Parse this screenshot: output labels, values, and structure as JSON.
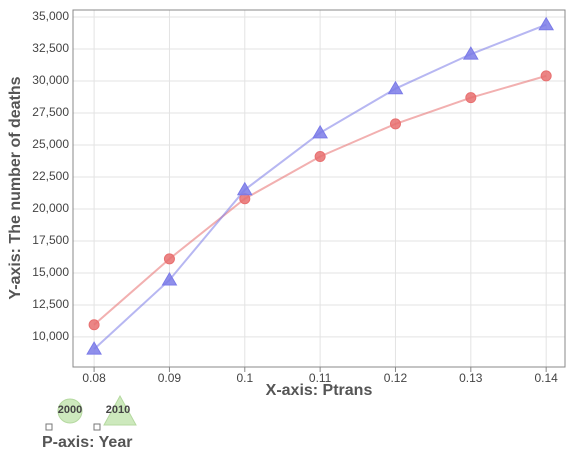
{
  "chart_data": {
    "type": "line",
    "x_label": "X-axis: Ptrans",
    "y_label": "Y-axis: The number of deaths",
    "legend_title": "P-axis: Year",
    "x": [
      0.08,
      0.09,
      0.1,
      0.11,
      0.12,
      0.13,
      0.14
    ],
    "series": [
      {
        "name": "2000",
        "color": "#e87070",
        "marker": "circle",
        "values": [
          10950,
          16100,
          20800,
          24100,
          26650,
          28700,
          30400
        ]
      },
      {
        "name": "2010",
        "color": "#7b7be8",
        "marker": "triangle",
        "values": [
          9050,
          14450,
          21500,
          25950,
          29400,
          32100,
          34400
        ]
      }
    ],
    "xlim": [
      0.0772,
      0.1425
    ],
    "xticks": [
      0.08,
      0.09,
      0.1,
      0.11,
      0.12,
      0.13,
      0.14
    ],
    "ylim": [
      7650,
      35550
    ],
    "yticks": [
      {
        "value": 10000,
        "label": "10,000"
      },
      {
        "value": 12500,
        "label": "12,500"
      },
      {
        "value": 15000,
        "label": "15,000"
      },
      {
        "value": 17500,
        "label": "17,500"
      },
      {
        "value": 20000,
        "label": "20,000"
      },
      {
        "value": 22500,
        "label": "22,500"
      },
      {
        "value": 25000,
        "label": "25,000"
      },
      {
        "value": 27500,
        "label": "27,500"
      },
      {
        "value": 30000,
        "label": "30,000"
      },
      {
        "value": 32500,
        "label": "32,500"
      },
      {
        "value": 35000,
        "label": "35,000"
      }
    ],
    "grid": true
  }
}
